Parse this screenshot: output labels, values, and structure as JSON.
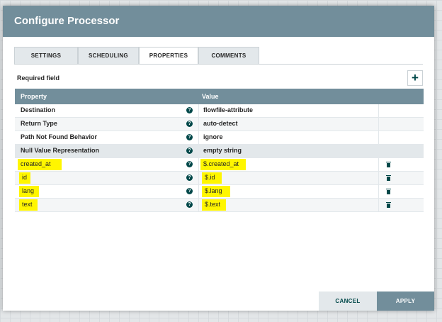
{
  "dialog": {
    "title": "Configure Processor"
  },
  "tabs": [
    {
      "label": "SETTINGS",
      "active": false
    },
    {
      "label": "SCHEDULING",
      "active": false
    },
    {
      "label": "PROPERTIES",
      "active": true
    },
    {
      "label": "COMMENTS",
      "active": false
    }
  ],
  "required_field": "Required field",
  "add_button_glyph": "+",
  "table": {
    "headers": {
      "property": "Property",
      "value": "Value"
    },
    "help_glyph": "?",
    "rows": [
      {
        "property": "Destination",
        "value": "flowfile-attribute"
      },
      {
        "property": "Return Type",
        "value": "auto-detect"
      },
      {
        "property": "Path Not Found Behavior",
        "value": "ignore"
      },
      {
        "property": "Null Value Representation",
        "value": "empty string"
      },
      {
        "property": "created_at",
        "value": "$.created_at"
      },
      {
        "property": "id",
        "value": "$.id"
      },
      {
        "property": "lang",
        "value": "$.lang"
      },
      {
        "property": "text",
        "value": "$.text"
      }
    ]
  },
  "footer": {
    "cancel_label": "CANCEL",
    "apply_label": "APPLY"
  },
  "colors": {
    "header": "#728e9b",
    "accent": "#004849",
    "highlight": "#fff600",
    "tab_inactive": "#e3e8eb"
  },
  "icons": {
    "add": "plus-icon",
    "help": "question-circle-icon",
    "delete": "trash-icon"
  }
}
